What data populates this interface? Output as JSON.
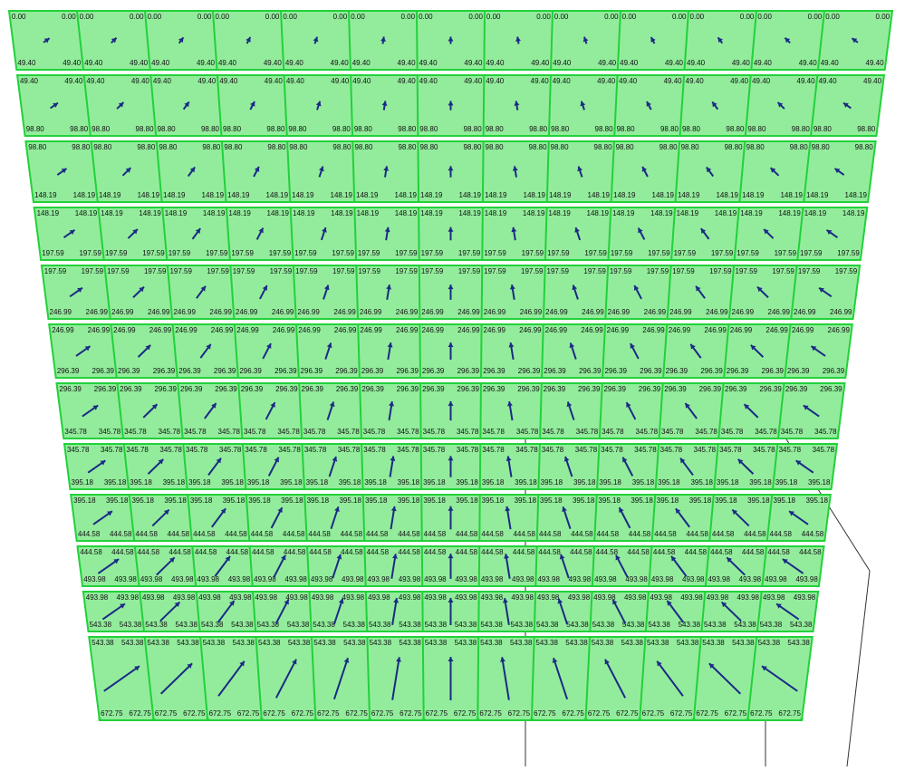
{
  "levels": [
    "0.00",
    "49.40",
    "98.80",
    "148.19",
    "197.59",
    "246.99",
    "296.39",
    "345.78",
    "395.18",
    "444.58",
    "493.98",
    "543.38",
    "672.75"
  ]
}
